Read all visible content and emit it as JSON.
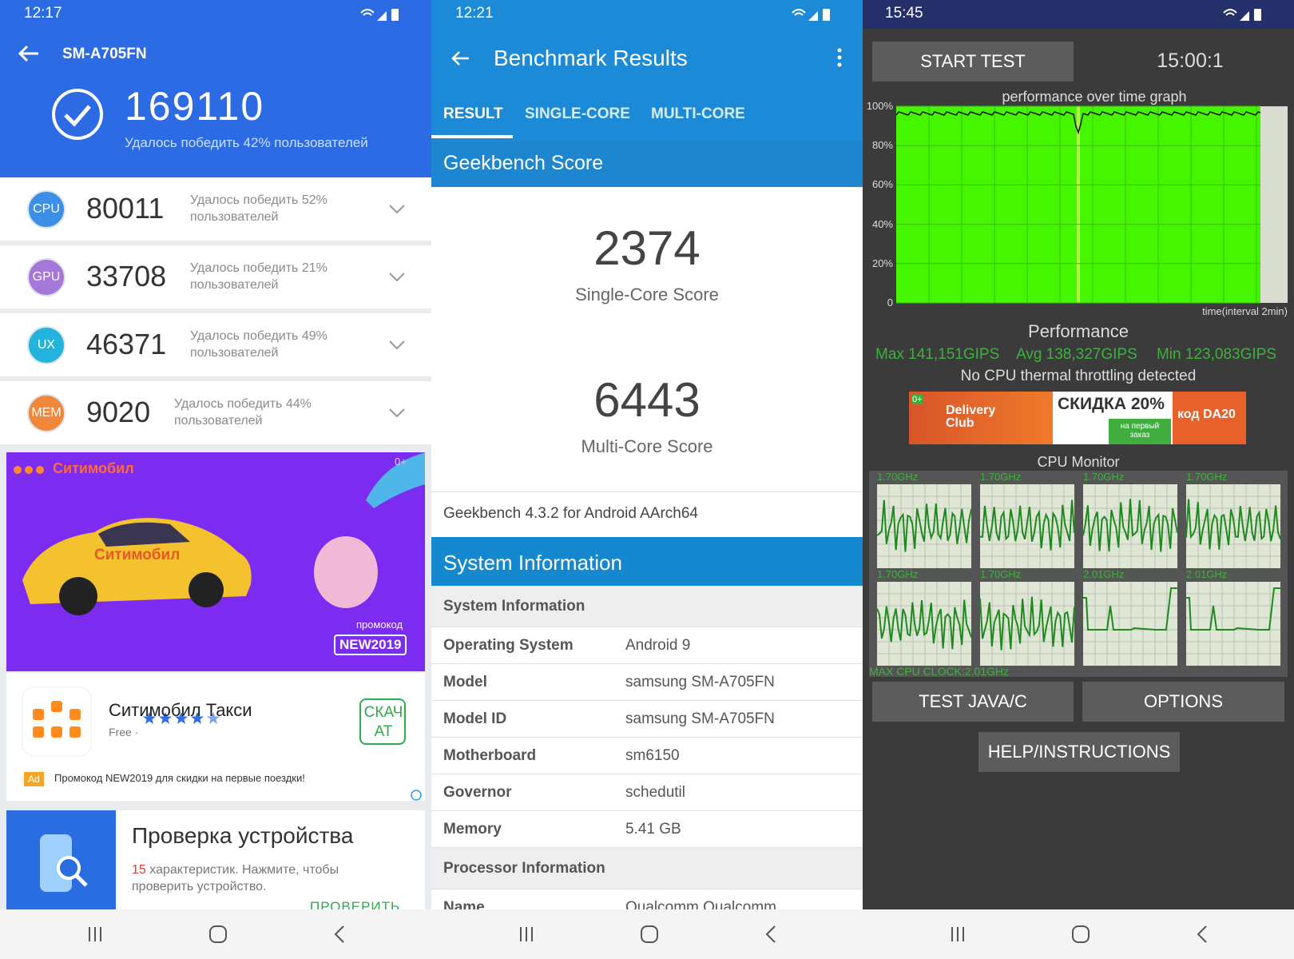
{
  "antutu": {
    "time": "12:17",
    "device": "SM-A705FN",
    "total_score": 169110,
    "total_text": "Удалось победить 42% пользователей",
    "rows": [
      {
        "badge": "CPU",
        "score": 80011,
        "text": "Удалось победить 52% пользователей"
      },
      {
        "badge": "GPU",
        "score": 33708,
        "text": "Удалось победить 21% пользователей"
      },
      {
        "badge": "UX",
        "score": 46371,
        "text": "Удалось победить 49% пользователей"
      },
      {
        "badge": "MEM",
        "score": 9020,
        "text": "Удалось победить 44% пользователей"
      }
    ],
    "ad": {
      "brand": "Ситимобил",
      "corner": "0+",
      "car_label": "Ситимобил",
      "promo_label": "промокод",
      "promo_code": "NEW2019",
      "app_name": "Ситимобил Такси",
      "price": "Free ·",
      "install": "СКАЧАТ",
      "ad_badge": "Ad",
      "ad_text": "Промокод NEW2019 для скидки на первые поездки!"
    },
    "card": {
      "title": "Проверка устройства",
      "count": "15",
      "text": "характеристик. Нажмите, чтобы проверить устройство.",
      "action": "ПРОВЕРИТЬ"
    }
  },
  "geekbench": {
    "time": "12:21",
    "title": "Benchmark Results",
    "tabs": [
      "RESULT",
      "SINGLE-CORE",
      "MULTI-CORE"
    ],
    "score_section": "Geekbench Score",
    "scores": [
      {
        "value": 2374,
        "label": "Single-Core Score"
      },
      {
        "value": 6443,
        "label": "Multi-Core Score"
      }
    ],
    "version": "Geekbench 4.3.2 for Android AArch64",
    "info_section": "System Information",
    "groups": [
      {
        "title": "System Information",
        "rows": [
          [
            "Operating System",
            "Android 9"
          ],
          [
            "Model",
            "samsung SM-A705FN"
          ],
          [
            "Model ID",
            "samsung SM-A705FN"
          ],
          [
            "Motherboard",
            "sm6150"
          ],
          [
            "Governor",
            "schedutil"
          ],
          [
            "Memory",
            "5.41 GB"
          ]
        ]
      },
      {
        "title": "Processor Information",
        "rows": [
          [
            "Name",
            "Qualcomm Qualcomm"
          ]
        ]
      }
    ]
  },
  "cpu_throttling": {
    "time": "15:45",
    "start_button": "START TEST",
    "timer": "15:00:1",
    "graph_title": "performance over time graph",
    "graph_ylim": [
      0,
      100
    ],
    "graph_yticks": [
      {
        "value": 100,
        "label": "100%"
      },
      {
        "value": 80,
        "label": "80%"
      },
      {
        "value": 60,
        "label": "60%"
      },
      {
        "value": 40,
        "label": "40%"
      },
      {
        "value": 20,
        "label": "20%"
      },
      0
    ],
    "graph_xlabel": "time(interval 2min)",
    "performance_title": "Performance",
    "stats": [
      "Max 141,151GIPS",
      "Avg 138,327GIPS",
      "Min 123,083GIPS"
    ],
    "throttling_note": "No CPU thermal throttling detected",
    "ad": {
      "corner": "0+",
      "brand": "Delivery Club",
      "discount": "СКИДКА 20%",
      "first_order": "на первый заказ",
      "code": "код DA20"
    },
    "monitor_title": "CPU Monitor",
    "cores": [
      "1.70GHz",
      "1.70GHz",
      "1.70GHz",
      "1.70GHz",
      "1.70GHz",
      "1.70GHz",
      "2.01GHz",
      "2.01GHz"
    ],
    "max_clock": "MAX CPU CLOCK:2.01GHz",
    "buttons": [
      "TEST JAVA/C",
      "OPTIONS"
    ],
    "help_button": "HELP/INSTRUCTIONS"
  }
}
